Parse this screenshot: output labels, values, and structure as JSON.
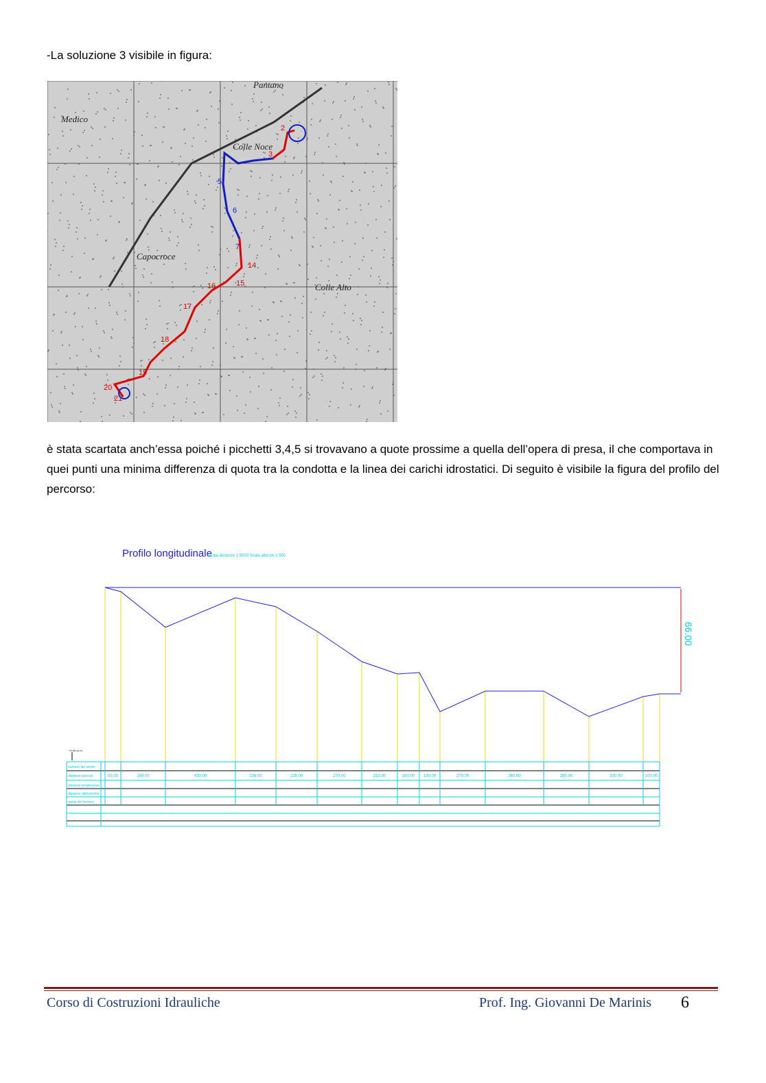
{
  "intro": "-La soluzione 3 visibile in figura:",
  "body": "è stata scartata anch’essa poiché i picchetti 3,4,5 si trovavano a quote prossime a quella dell’opera di presa, il che comportava in quei punti una minima differenza di quota tra la condotta e la linea dei carichi idrostatici. Di seguito è visibile la figura del profilo del percorso:",
  "map": {
    "place_names": [
      "Colle Noce",
      "Capocroce",
      "Colle Alto",
      "Pantano",
      "Medico"
    ],
    "point_labels": [
      "2",
      "3",
      "5",
      "6",
      "7",
      "14",
      "15",
      "16",
      "17",
      "18",
      "19",
      "20",
      "21"
    ],
    "colors": {
      "red_route": "#e00000",
      "blue_route": "#1020c0"
    }
  },
  "profile": {
    "title": "Profilo longitudinale",
    "scale_text": "Scala distanze 1:5000   Scala altezze 1:500",
    "dimension": "66.00",
    "datum": "+0.00 s.l.m.",
    "row_labels": [
      "numero dei vertici",
      "distanze parziali",
      "distanze progressive",
      "distanze altimetriche",
      "quote del terreno"
    ],
    "partial_distances": [
      "55.00",
      "265.00",
      "430.00",
      "236.00",
      "225.00",
      "270.00",
      "210.00",
      "160.00",
      "130.00",
      "270.00",
      "360.00",
      "285.00",
      "330.00",
      "100.00"
    ],
    "colors": {
      "profile": "#2020d0",
      "verticals": "#f0e000",
      "table": "#00d0e0",
      "dimension": "#e00000"
    }
  },
  "footer": {
    "left": "Corso di Costruzioni Idrauliche",
    "right": "Prof. Ing. Giovanni De Marinis",
    "page": "6"
  }
}
